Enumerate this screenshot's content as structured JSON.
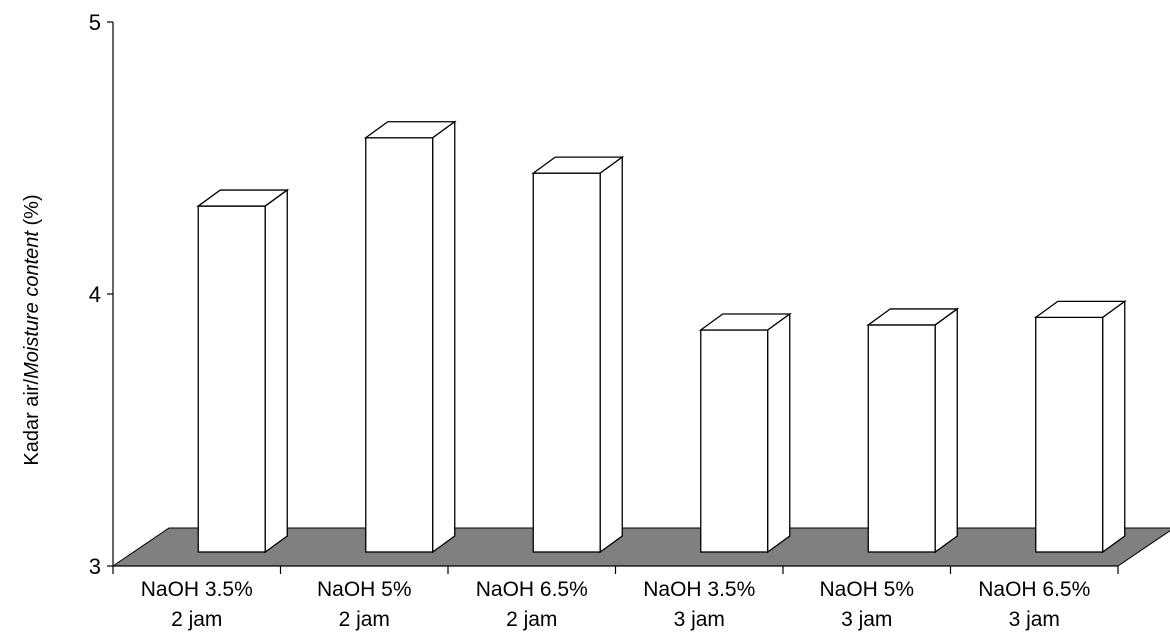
{
  "chart_data": {
    "type": "bar",
    "style": "3d",
    "categories": [
      [
        "NaOH 3.5%",
        "2 jam"
      ],
      [
        "NaOH 5%",
        "2 jam"
      ],
      [
        "NaOH 6.5%",
        "2 jam"
      ],
      [
        "NaOH 3.5%",
        "3 jam"
      ],
      [
        "NaOH 5%",
        "3 jam"
      ],
      [
        "NaOH 6.5%",
        "3 jam"
      ]
    ],
    "values": [
      4.32,
      4.59,
      4.45,
      3.83,
      3.85,
      3.88
    ],
    "ylabel": "Kadar air/Moisture content (%)",
    "ylabel_plain": "Kadar air/",
    "ylabel_italic": "Moisture content",
    "ylabel_suffix": " (%)",
    "ylim": [
      3,
      5
    ],
    "yticks": [
      "3",
      "4",
      "5"
    ],
    "grid": false,
    "legend": "none",
    "colors": {
      "bar_face": "#ffffff",
      "floor": "#808080",
      "stroke": "#000000"
    }
  }
}
